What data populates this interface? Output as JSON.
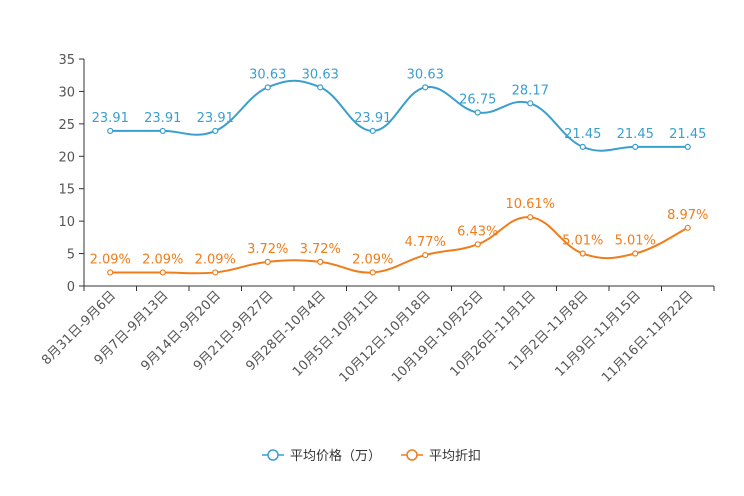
{
  "chart_data": {
    "type": "line",
    "title": "",
    "xlabel": "",
    "ylabel": "",
    "ylim": [
      0,
      35
    ],
    "yticks": [
      0,
      5,
      10,
      15,
      20,
      25,
      30,
      35
    ],
    "grid": false,
    "legend_position": "bottom-center",
    "categories": [
      "8月31日-9月6日",
      "9月7日-9月13日",
      "9月14日-9月20日",
      "9月21日-9月27日",
      "9月28日-10月4日",
      "10月5日-10月11日",
      "10月12日-10月18日",
      "10月19日-10月25日",
      "10月26日-11月1日",
      "11月2日-11月8日",
      "11月9日-11月15日",
      "11月16日-11月22日"
    ],
    "series": [
      {
        "name": "平均价格（万）",
        "color": "#3a9fcf",
        "values": [
          23.91,
          23.91,
          23.91,
          30.63,
          30.63,
          23.91,
          30.63,
          26.75,
          28.17,
          21.45,
          21.45,
          21.45
        ],
        "labels": [
          "23.91",
          "23.91",
          "23.91",
          "30.63",
          "30.63",
          "23.91",
          "30.63",
          "26.75",
          "28.17",
          "21.45",
          "21.45",
          "21.45"
        ]
      },
      {
        "name": "平均折扣",
        "color": "#f07c1a",
        "values": [
          2.09,
          2.09,
          2.09,
          3.72,
          3.72,
          2.09,
          4.77,
          6.43,
          10.61,
          5.01,
          5.01,
          8.97
        ],
        "labels": [
          "2.09%",
          "2.09%",
          "2.09%",
          "3.72%",
          "3.72%",
          "2.09%",
          "4.77%",
          "6.43%",
          "10.61%",
          "5.01%",
          "5.01%",
          "8.97%"
        ]
      }
    ]
  }
}
